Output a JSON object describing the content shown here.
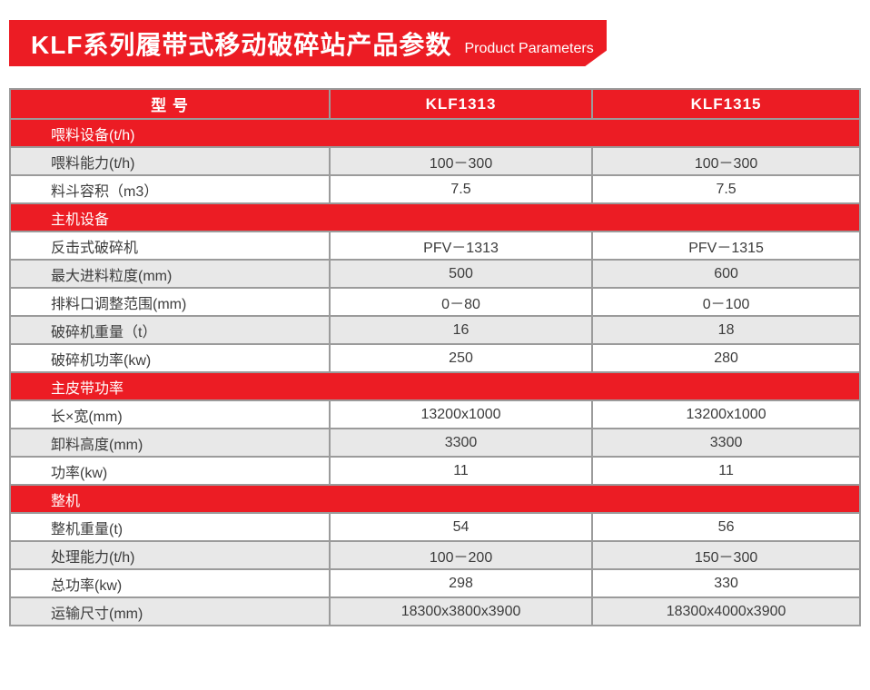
{
  "banner": {
    "title_zh": "KLF系列履带式移动破碎站产品参数",
    "title_en": "Product Parameters"
  },
  "colors": {
    "accent_red": "#ec1c24",
    "row_alt_gray": "#e8e8e8",
    "grid_line": "#9b9b9b",
    "outer_border": "#555555",
    "text_dark": "#3c3c3c",
    "text_white": "#ffffff"
  },
  "table": {
    "header": [
      "型 号",
      "KLF1313",
      "KLF1315"
    ],
    "sections": [
      {
        "title": "喂料设备(t/h)",
        "rows": [
          {
            "label": "喂料能力(t/h)",
            "v1": "100－300",
            "v2": "100－300"
          },
          {
            "label": "料斗容积（m3）",
            "v1": "7.5",
            "v2": "7.5"
          }
        ]
      },
      {
        "title": "主机设备",
        "rows": [
          {
            "label": "反击式破碎机",
            "v1": "PFV－1313",
            "v2": "PFV－1315"
          },
          {
            "label": "最大进料粒度(mm)",
            "v1": "500",
            "v2": "600"
          },
          {
            "label": "排料口调整范围(mm)",
            "v1": "0－80",
            "v2": "0－100"
          },
          {
            "label": "破碎机重量（t）",
            "v1": "16",
            "v2": "18"
          },
          {
            "label": "破碎机功率(kw)",
            "v1": "250",
            "v2": "280"
          }
        ]
      },
      {
        "title": "主皮带功率",
        "rows": [
          {
            "label": "长×宽(mm)",
            "v1": "13200x1000",
            "v2": "13200x1000"
          },
          {
            "label": "卸料高度(mm)",
            "v1": "3300",
            "v2": "3300"
          },
          {
            "label": "功率(kw)",
            "v1": "11",
            "v2": "11"
          }
        ]
      },
      {
        "title": "整机",
        "rows": [
          {
            "label": "整机重量(t)",
            "v1": "54",
            "v2": "56"
          },
          {
            "label": "处理能力(t/h)",
            "v1": "100－200",
            "v2": "150－300"
          },
          {
            "label": "总功率(kw)",
            "v1": "298",
            "v2": "330"
          },
          {
            "label": "运输尺寸(mm)",
            "v1": "18300x3800x3900",
            "v2": "18300x4000x3900"
          }
        ]
      }
    ]
  }
}
